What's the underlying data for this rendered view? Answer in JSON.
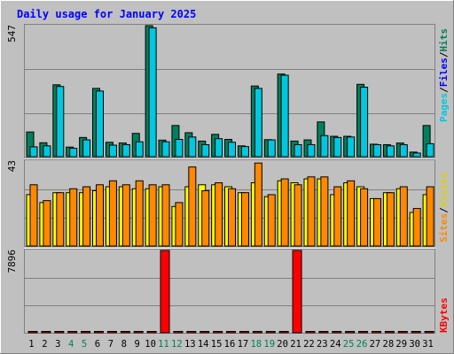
{
  "chart_data": [
    {
      "panel": "hits",
      "type": "bar",
      "title": "Daily usage for January 2025",
      "ymax_label": "547",
      "ylim": [
        0,
        547
      ],
      "grid": true,
      "days": [
        "1",
        "2",
        "3",
        "4",
        "5",
        "6",
        "7",
        "8",
        "9",
        "10",
        "11",
        "12",
        "13",
        "14",
        "15",
        "16",
        "17",
        "18",
        "19",
        "20",
        "21",
        "22",
        "23",
        "24",
        "25",
        "26",
        "27",
        "28",
        "29",
        "30",
        "31"
      ],
      "weekend_days": [
        4,
        5,
        11,
        12,
        18,
        19,
        25,
        26
      ],
      "series": [
        {
          "name": "Hits",
          "color": "#00805c",
          "values": [
            103,
            58,
            300,
            40,
            80,
            285,
            60,
            57,
            97,
            547,
            69,
            130,
            100,
            65,
            93,
            72,
            45,
            295,
            71,
            345,
            65,
            70,
            145,
            85,
            85,
            302,
            52,
            50,
            57,
            19,
            130
          ]
        },
        {
          "name": "Files",
          "color": "#00c8e0",
          "values": [
            41,
            45,
            293,
            35,
            70,
            274,
            48,
            50,
            62,
            538,
            62,
            72,
            82,
            50,
            75,
            60,
            42,
            285,
            70,
            340,
            50,
            50,
            88,
            80,
            82,
            290,
            50,
            45,
            50,
            15,
            54
          ]
        },
        {
          "name": "Pages",
          "color": "#00c8e0",
          "values": []
        }
      ],
      "axis_labels": [
        "Pages",
        "/",
        "Files",
        "/",
        "Hits"
      ]
    },
    {
      "panel": "visits",
      "type": "bar",
      "ymax_label": "43",
      "ylim": [
        0,
        43
      ],
      "grid": true,
      "series": [
        {
          "name": "Visits",
          "color": "#ffff00",
          "values": [
            26,
            22,
            27,
            27,
            27,
            28,
            30,
            30,
            29,
            29,
            30,
            20,
            30,
            31,
            31,
            30,
            27,
            32,
            25,
            33,
            32,
            34,
            34,
            26,
            32,
            30,
            24,
            27,
            29,
            17,
            26
          ]
        },
        {
          "name": "Sites",
          "color": "#ff8800",
          "values": [
            31,
            23,
            27,
            29,
            30,
            31,
            33,
            31,
            33,
            31,
            31,
            22,
            40,
            28,
            32,
            29,
            27,
            42,
            26,
            34,
            31,
            35,
            35,
            30,
            33,
            29,
            24,
            27,
            30,
            19,
            30
          ]
        }
      ],
      "axis_labels": [
        "Sites",
        "/",
        "Visits"
      ]
    },
    {
      "panel": "kbytes",
      "type": "bar",
      "ymax_label": "7896",
      "ylim": [
        0,
        7896
      ],
      "grid": true,
      "series": [
        {
          "name": "KBytes",
          "color": "#ff0000",
          "values": [
            0,
            0,
            0,
            0,
            0,
            0,
            0,
            0,
            0,
            80,
            7896,
            0,
            0,
            0,
            0,
            0,
            0,
            0,
            0,
            0,
            7896,
            0,
            0,
            0,
            0,
            0,
            0,
            0,
            0,
            0,
            0
          ]
        }
      ],
      "axis_labels": [
        "KBytes"
      ]
    }
  ],
  "colors": {
    "hits": "#00805c",
    "files": "#00c8e0",
    "pages": "#00c8e0",
    "visits": "#ffff00",
    "sites": "#ff8800",
    "kbytes": "#ff0000",
    "title": "#0000ff",
    "weekend_label": "#00805c",
    "weekday_label": "#000000",
    "divider": "#ffffff"
  }
}
